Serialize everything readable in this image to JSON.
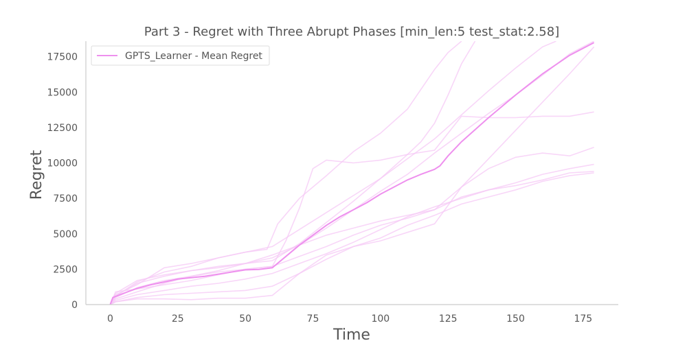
{
  "chart_data": {
    "type": "line",
    "title": "Part 3 - Regret with Three Abrupt Phases [min_len:5 test_stat:2.58]",
    "xlabel": "Time",
    "ylabel": "Regret",
    "xlim": [
      -9,
      188
    ],
    "ylim": [
      0,
      18600
    ],
    "xticks": [
      0,
      25,
      50,
      75,
      100,
      125,
      150,
      175
    ],
    "yticks": [
      0,
      2500,
      5000,
      7500,
      10000,
      12500,
      15000,
      17500
    ],
    "grid": false,
    "legend": {
      "position": "top-left",
      "entries": [
        "GPTS_Learner - Mean Regret"
      ]
    },
    "colors": {
      "mean": "#ee90ee",
      "runs": "#f6c8f6"
    },
    "series": [
      {
        "name": "GPTS_Learner - Mean Regret",
        "x": [
          0,
          1,
          5,
          10,
          15,
          20,
          25,
          30,
          35,
          40,
          45,
          50,
          55,
          60,
          65,
          70,
          75,
          80,
          85,
          90,
          95,
          100,
          105,
          110,
          115,
          120,
          122,
          125,
          130,
          140,
          150,
          160,
          170,
          179
        ],
        "values": [
          0,
          500,
          800,
          1150,
          1400,
          1600,
          1800,
          1900,
          2000,
          2150,
          2300,
          2450,
          2480,
          2600,
          3400,
          4200,
          4900,
          5600,
          6200,
          6700,
          7200,
          7800,
          8300,
          8800,
          9200,
          9550,
          9800,
          10500,
          11500,
          13200,
          14800,
          16300,
          17600,
          18500
        ]
      }
    ],
    "individual_runs": [
      {
        "x": [
          0,
          2,
          10,
          20,
          30,
          40,
          50,
          60,
          70,
          80,
          90,
          100,
          110,
          120,
          130,
          140,
          150,
          160,
          170,
          179
        ],
        "values": [
          0,
          400,
          900,
          1500,
          2000,
          2400,
          2900,
          3500,
          4200,
          4900,
          5400,
          5900,
          6300,
          6700,
          8300,
          10300,
          12300,
          14300,
          16300,
          18200
        ]
      },
      {
        "x": [
          0,
          2,
          10,
          20,
          30,
          40,
          50,
          60,
          65,
          70,
          75,
          80,
          90,
          100,
          110,
          120,
          130,
          140,
          150,
          160,
          170,
          179
        ],
        "values": [
          0,
          500,
          1200,
          1700,
          2000,
          2300,
          2500,
          2700,
          4500,
          6800,
          9600,
          10200,
          10000,
          10200,
          10600,
          10900,
          13300,
          13200,
          13200,
          13300,
          13300,
          13600
        ]
      },
      {
        "x": [
          0,
          2,
          10,
          20,
          30,
          40,
          50,
          60,
          70,
          80,
          90,
          100,
          110,
          120,
          130,
          140,
          150,
          160,
          170,
          179
        ],
        "values": [
          0,
          300,
          700,
          1000,
          1300,
          1500,
          1800,
          2200,
          2900,
          3600,
          4400,
          5300,
          6200,
          6900,
          7500,
          8100,
          8600,
          9200,
          9600,
          9900
        ]
      },
      {
        "x": [
          0,
          2,
          10,
          20,
          30,
          40,
          50,
          60,
          70,
          80,
          90,
          100,
          110,
          120,
          130,
          140,
          150,
          160,
          170,
          179
        ],
        "values": [
          0,
          600,
          1500,
          2000,
          2400,
          2600,
          2900,
          3300,
          4200,
          5400,
          6700,
          8000,
          9200,
          10700,
          12100,
          13500,
          14800,
          16200,
          17700,
          18600
        ]
      },
      {
        "x": [
          0,
          2,
          10,
          20,
          30,
          40,
          50,
          60,
          70,
          80,
          90,
          100,
          110,
          120,
          130,
          140,
          150,
          160,
          170,
          179
        ],
        "values": [
          0,
          200,
          500,
          700,
          800,
          900,
          1000,
          1300,
          2200,
          3200,
          4100,
          4700,
          5600,
          6300,
          7100,
          7600,
          8100,
          8700,
          9100,
          9300
        ]
      },
      {
        "x": [
          0,
          2,
          10,
          20,
          30,
          40,
          50,
          60,
          70,
          80,
          90,
          100,
          110,
          115,
          120,
          125,
          130,
          135
        ],
        "values": [
          0,
          800,
          1700,
          2100,
          2400,
          2700,
          2900,
          3100,
          4300,
          5800,
          7300,
          8900,
          10600,
          11500,
          12800,
          14800,
          17000,
          18600
        ]
      },
      {
        "x": [
          0,
          2,
          10,
          20,
          30,
          40,
          50,
          58,
          62,
          70,
          80,
          90,
          100,
          110,
          115,
          120,
          125,
          130
        ],
        "values": [
          0,
          700,
          1400,
          2600,
          2900,
          3300,
          3700,
          3900,
          5700,
          7500,
          9100,
          10800,
          12100,
          13800,
          15200,
          16600,
          17800,
          18600
        ]
      },
      {
        "x": [
          0,
          2,
          10,
          20,
          30,
          40,
          50,
          60,
          70,
          80,
          90,
          100,
          110,
          120,
          130,
          140,
          150,
          160,
          170,
          179
        ],
        "values": [
          0,
          200,
          400,
          400,
          350,
          450,
          450,
          650,
          2200,
          3500,
          4100,
          4500,
          5100,
          5700,
          8300,
          9600,
          10400,
          10700,
          10500,
          11100
        ]
      },
      {
        "x": [
          0,
          2,
          10,
          20,
          30,
          40,
          50,
          60,
          70,
          80,
          90,
          100,
          110,
          120,
          130,
          140,
          150,
          160,
          170,
          179
        ],
        "values": [
          0,
          900,
          1100,
          1400,
          1700,
          2100,
          2500,
          2700,
          3400,
          4100,
          4900,
          5600,
          6100,
          6700,
          7600,
          8100,
          8400,
          8800,
          9300,
          9400
        ]
      },
      {
        "x": [
          0,
          2,
          10,
          20,
          30,
          40,
          50,
          60,
          70,
          80,
          90,
          100,
          110,
          120,
          130,
          140,
          150,
          160,
          165
        ],
        "values": [
          0,
          600,
          1600,
          2300,
          2700,
          3300,
          3700,
          4100,
          5300,
          6500,
          7700,
          8900,
          10300,
          11700,
          13400,
          15100,
          16700,
          18200,
          18600
        ]
      }
    ]
  }
}
